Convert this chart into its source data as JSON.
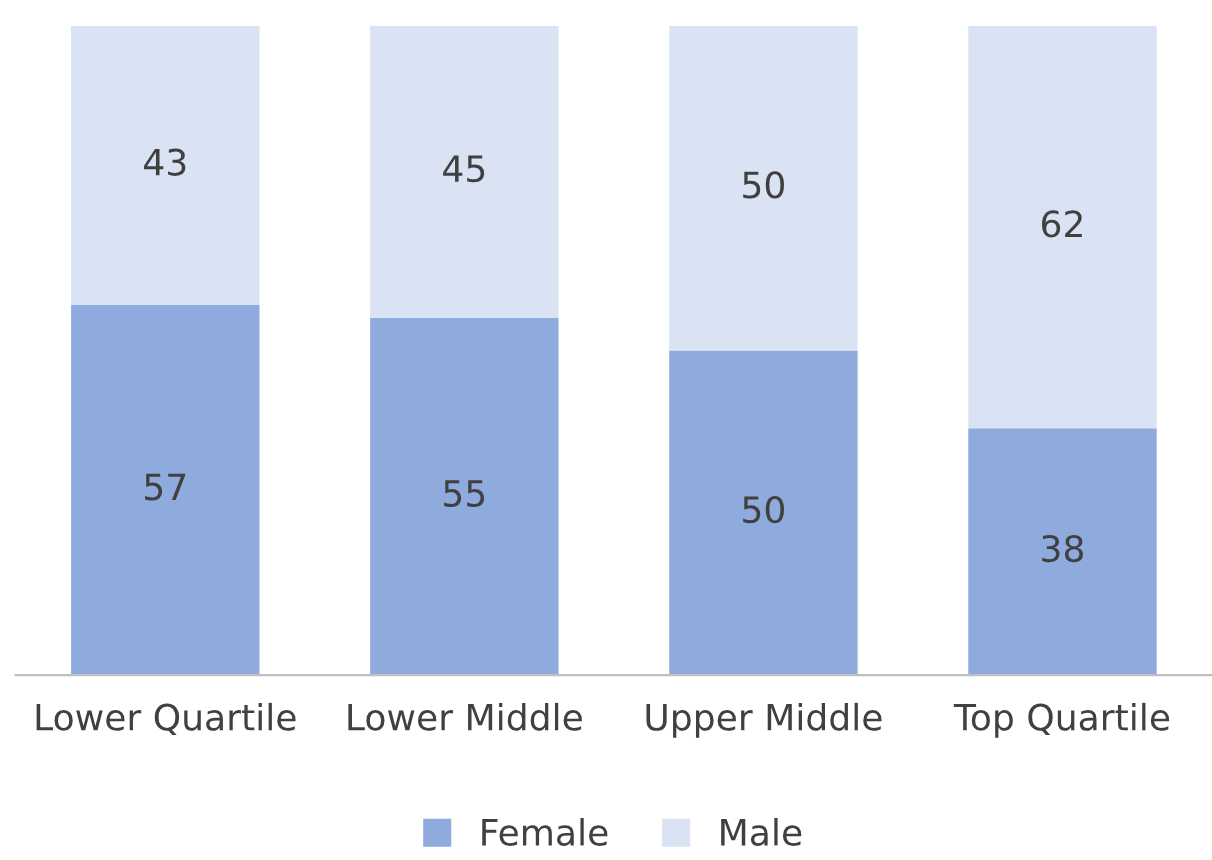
{
  "chart_data": {
    "type": "bar",
    "stacked": true,
    "data_labels": true,
    "legend": "bottom",
    "grid": false,
    "categories": [
      "Lower Quartile",
      "Lower Middle",
      "Upper Middle",
      "Top Quartile"
    ],
    "series": [
      {
        "name": "Female",
        "color": "#8faadc",
        "values": [
          57,
          55,
          50,
          38
        ]
      },
      {
        "name": "Male",
        "color": "#dae3f3",
        "values": [
          43,
          45,
          50,
          62
        ]
      }
    ]
  }
}
